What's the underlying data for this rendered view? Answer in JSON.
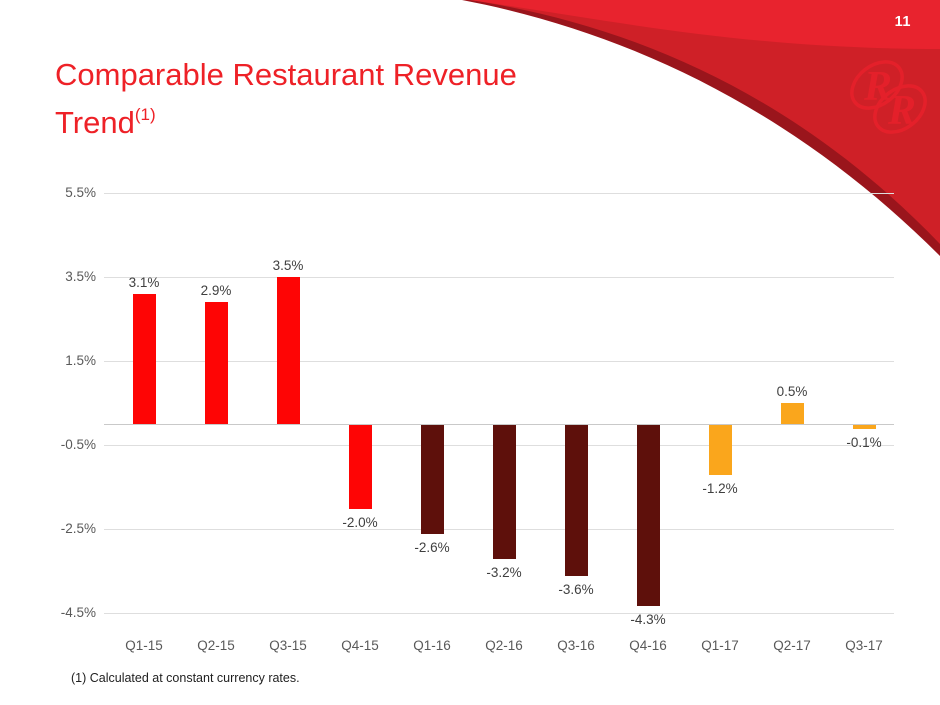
{
  "page": {
    "number": "11"
  },
  "title": {
    "line1": "Comparable Restaurant Revenue",
    "line2": "Trend",
    "superscript": "(1)"
  },
  "footnote": "(1) Calculated at constant currency rates.",
  "logo": {
    "r1": "R",
    "r2": "R"
  },
  "colors": {
    "title_red": "#ee2127",
    "swoosh_bright_red": "#e8232e",
    "swoosh_dark_red": "#cf2027",
    "swoosh_edge_shadow": "#9a151c",
    "logo_red": "#e4202a",
    "bar_red": "#fe0505",
    "bar_maroon": "#5e100b",
    "bar_orange": "#faa61c",
    "gridline": "#dedede",
    "axis_text": "#595959",
    "data_label_text": "#3f3f3f"
  },
  "chart_data": {
    "type": "bar",
    "title": "Comparable Restaurant Revenue Trend (1)",
    "xlabel": "",
    "ylabel": "",
    "categories": [
      "Q1-15",
      "Q2-15",
      "Q3-15",
      "Q4-15",
      "Q1-16",
      "Q2-16",
      "Q3-16",
      "Q4-16",
      "Q1-17",
      "Q2-17",
      "Q3-17"
    ],
    "values": [
      3.1,
      2.9,
      3.5,
      -2.0,
      -2.6,
      -3.2,
      -3.6,
      -4.3,
      -1.2,
      0.5,
      -0.1
    ],
    "value_labels": [
      "3.1%",
      "2.9%",
      "3.5%",
      "-2.0%",
      "-2.6%",
      "-3.2%",
      "-3.6%",
      "-4.3%",
      "-1.2%",
      "0.5%",
      "-0.1%"
    ],
    "bar_colors": [
      "#fe0505",
      "#fe0505",
      "#fe0505",
      "#fe0505",
      "#5e100b",
      "#5e100b",
      "#5e100b",
      "#5e100b",
      "#faa61c",
      "#faa61c",
      "#faa61c"
    ],
    "y_ticks": [
      5.5,
      3.5,
      1.5,
      -0.5,
      -2.5,
      -4.5
    ],
    "y_tick_labels": [
      "5.5%",
      "3.5%",
      "1.5%",
      "-0.5%",
      "-2.5%",
      "-4.5%"
    ],
    "ylim": [
      -5.5,
      6.0
    ],
    "grid": true,
    "legend": false
  }
}
